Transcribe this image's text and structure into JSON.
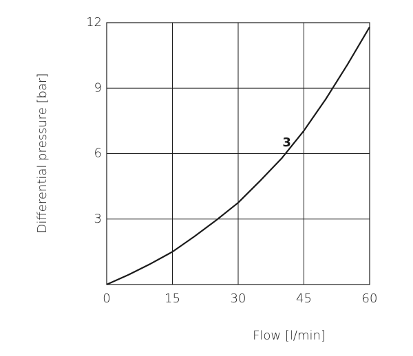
{
  "chart_data": {
    "type": "line",
    "x_label": "Flow [l/min]",
    "y_label": "Differential pressure [bar]",
    "x": [
      0,
      5,
      10,
      15,
      20,
      25,
      30,
      35,
      40,
      45,
      50,
      55,
      60
    ],
    "series": [
      {
        "name": "3",
        "color": "#1a1a1a",
        "values": [
          0,
          0.45,
          0.95,
          1.5,
          2.2,
          2.95,
          3.75,
          4.75,
          5.8,
          7.05,
          8.5,
          10.1,
          11.8
        ]
      }
    ],
    "xlim": [
      0,
      60
    ],
    "xticks": [
      0,
      15,
      30,
      45,
      60
    ],
    "ylim": [
      0,
      12
    ],
    "yticks": [
      3,
      6,
      9,
      12
    ],
    "grid": true
  }
}
